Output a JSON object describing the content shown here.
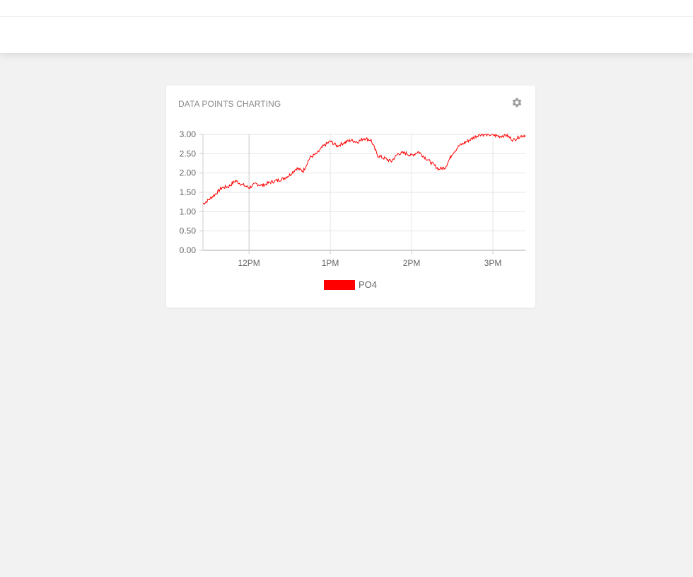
{
  "page": {
    "background": "#f2f2f3"
  },
  "widget": {
    "title": "DATA POINTS CHARTING",
    "settings_icon": "gear-icon"
  },
  "chart_data": {
    "type": "line",
    "title": "",
    "xlabel": "",
    "ylabel": "",
    "x_ticks": [
      "12PM",
      "1PM",
      "2PM",
      "3PM"
    ],
    "y_ticks": [
      "0.00",
      "0.50",
      "1.00",
      "1.50",
      "2.00",
      "2.50",
      "3.00"
    ],
    "xlim": [
      "11:26",
      "15:24"
    ],
    "ylim": [
      0,
      3
    ],
    "grid": true,
    "legend_position": "bottom",
    "series": [
      {
        "name": "PO4",
        "color": "#ff0000",
        "x": [
          "11:26",
          "11:30",
          "11:35",
          "11:40",
          "11:45",
          "11:50",
          "11:55",
          "12:00",
          "12:05",
          "12:10",
          "12:15",
          "12:20",
          "12:25",
          "12:30",
          "12:35",
          "12:40",
          "12:45",
          "12:50",
          "12:55",
          "13:00",
          "13:05",
          "13:10",
          "13:15",
          "13:20",
          "13:25",
          "13:30",
          "13:35",
          "13:40",
          "13:45",
          "13:50",
          "13:55",
          "14:00",
          "14:05",
          "14:10",
          "14:15",
          "14:20",
          "14:25",
          "14:30",
          "14:35",
          "14:40",
          "14:45",
          "14:50",
          "14:55",
          "15:00",
          "15:05",
          "15:10",
          "15:15",
          "15:20",
          "15:24"
        ],
        "values": [
          1.2,
          1.3,
          1.45,
          1.62,
          1.65,
          1.8,
          1.7,
          1.62,
          1.72,
          1.68,
          1.75,
          1.8,
          1.85,
          1.95,
          2.12,
          2.05,
          2.4,
          2.5,
          2.7,
          2.82,
          2.7,
          2.78,
          2.85,
          2.8,
          2.9,
          2.85,
          2.45,
          2.38,
          2.3,
          2.5,
          2.52,
          2.45,
          2.55,
          2.4,
          2.25,
          2.1,
          2.15,
          2.5,
          2.7,
          2.8,
          2.9,
          3.0,
          3.0,
          2.98,
          2.95,
          2.98,
          2.85,
          2.95,
          2.98
        ]
      }
    ]
  }
}
